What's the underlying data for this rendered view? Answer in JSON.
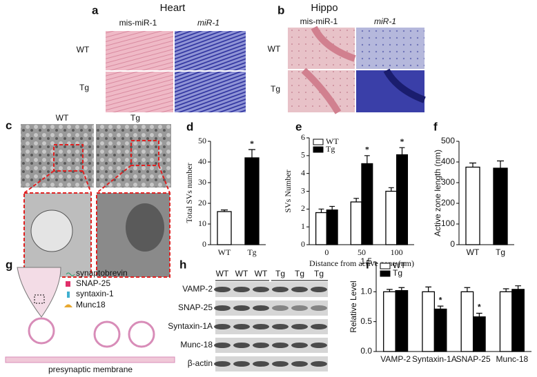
{
  "panels": {
    "a": {
      "label": "a",
      "title": "Heart",
      "columns": [
        "mis-miR-1",
        "miR-1"
      ],
      "rows": [
        "WT",
        "Tg"
      ]
    },
    "b": {
      "label": "b",
      "title": "Hippo",
      "columns": [
        "mis-miR-1",
        "miR-1"
      ],
      "rows": [
        "WT",
        "Tg"
      ]
    },
    "c": {
      "label": "c",
      "columns": [
        "WT",
        "Tg"
      ]
    },
    "g": {
      "label": "g",
      "legend": [
        "synaptobrevin",
        "SNAP-25",
        "syntaxin-1",
        "Munc18"
      ],
      "caption": "presynaptic membrane"
    },
    "h": {
      "label": "h",
      "lanes": [
        "WT",
        "WT",
        "WT",
        "Tg",
        "Tg",
        "Tg"
      ],
      "rows": [
        "VAMP-2",
        "SNAP-25",
        "Syntaxin-1A",
        "Munc-18",
        "β-actin"
      ]
    }
  },
  "chart_data": [
    {
      "type": "bar",
      "label": "d",
      "font": "serif",
      "ylabel": "Total SVs number",
      "categories": [
        "WT",
        "Tg"
      ],
      "values": [
        16,
        42
      ],
      "errors": [
        0.8,
        4
      ],
      "colors": [
        "#ffffff",
        "#000000"
      ],
      "ylim": [
        0,
        50
      ],
      "yticks": [
        0,
        10,
        20,
        30,
        40,
        50
      ],
      "annotations": [
        {
          "text": "*",
          "category": "Tg"
        }
      ]
    },
    {
      "type": "bar",
      "label": "e",
      "font": "serif",
      "ylabel": "SVs Number",
      "xlabel": "Distance from active zone (nm)",
      "categories": [
        "0",
        "50",
        "100"
      ],
      "series": [
        {
          "name": "WT",
          "color": "#ffffff",
          "values": [
            1.8,
            2.4,
            3.0
          ],
          "errors": [
            0.2,
            0.2,
            0.2
          ]
        },
        {
          "name": "Tg",
          "color": "#000000",
          "values": [
            1.95,
            4.55,
            5.05
          ],
          "errors": [
            0.2,
            0.45,
            0.4
          ]
        }
      ],
      "ylim": [
        0,
        6
      ],
      "yticks": [
        0,
        1,
        2,
        3,
        4,
        5,
        6
      ],
      "legend": "top-left",
      "annotations": [
        {
          "text": "*",
          "category": "50",
          "series": "Tg"
        },
        {
          "text": "*",
          "category": "100",
          "series": "Tg"
        }
      ]
    },
    {
      "type": "bar",
      "label": "f",
      "font": "sans",
      "ylabel": "Active zone length (nm)",
      "categories": [
        "WT",
        "Tg"
      ],
      "values": [
        375,
        370
      ],
      "errors": [
        20,
        35
      ],
      "colors": [
        "#ffffff",
        "#000000"
      ],
      "ylim": [
        0,
        500
      ],
      "yticks": [
        0,
        100,
        200,
        300,
        400,
        500
      ]
    },
    {
      "type": "bar",
      "label": "i",
      "font": "sans",
      "ylabel": "Relative Level",
      "categories": [
        "VAMP-2",
        "Syntaxin-1A",
        "SNAP-25",
        "Munc-18"
      ],
      "series": [
        {
          "name": "WT",
          "color": "#ffffff",
          "values": [
            1.0,
            1.0,
            1.0,
            1.0
          ],
          "errors": [
            0.04,
            0.08,
            0.07,
            0.05
          ]
        },
        {
          "name": "Tg",
          "color": "#000000",
          "values": [
            1.02,
            0.71,
            0.58,
            1.04
          ],
          "errors": [
            0.05,
            0.05,
            0.06,
            0.06
          ]
        }
      ],
      "ylim": [
        0,
        1.5
      ],
      "yticks": [
        {
          "value": 0,
          "label": "0.0"
        },
        0.5,
        {
          "value": 1,
          "label": "1.0"
        },
        1.5
      ],
      "legend": "top-left",
      "annotations": [
        {
          "text": "*",
          "category": "Syntaxin-1A",
          "series": "Tg"
        },
        {
          "text": "*",
          "category": "SNAP-25",
          "series": "Tg"
        }
      ]
    }
  ]
}
